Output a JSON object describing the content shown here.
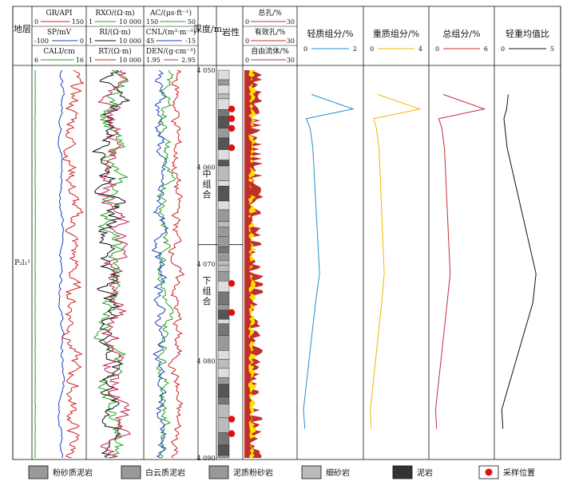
{
  "header": {
    "formation": "地层",
    "depth": "深度/m",
    "lithology": "岩性",
    "track1": [
      {
        "label": "GR/API",
        "min": "0",
        "max": "150",
        "color": "#d02020"
      },
      {
        "label": "SP/mV",
        "min": "-100",
        "max": "0",
        "color": "#2040c0"
      },
      {
        "label": "CALI/cm",
        "min": "6",
        "max": "16",
        "color": "#20a020"
      }
    ],
    "track2": [
      {
        "label": "RXO/(Ω·m)",
        "min": "1",
        "max": "10 000",
        "color": "#20a020"
      },
      {
        "label": "RI/(Ω·m)",
        "min": "1",
        "max": "10 000",
        "color": "#111111"
      },
      {
        "label": "RT/(Ω·m)",
        "min": "1",
        "max": "10 000",
        "color": "#d02020"
      }
    ],
    "track3": [
      {
        "label": "AC/(μs·ft⁻¹)",
        "min": "150",
        "max": "50",
        "color": "#20a020"
      },
      {
        "label": "CNL/(m³·m⁻³)",
        "min": "45",
        "max": "-15",
        "color": "#2040c0"
      },
      {
        "label": "DEN/(g·cm⁻³)",
        "min": "1.95",
        "max": "2.95",
        "color": "#d02020"
      }
    ],
    "porosity": [
      {
        "label": "总孔/%",
        "min": "0",
        "max": "30"
      },
      {
        "label": "有效孔/%",
        "min": "0",
        "max": "30"
      },
      {
        "label": "自由流体/%",
        "min": "0",
        "max": "30"
      }
    ]
  },
  "formation_label": "P₂l₁²",
  "zone_labels": {
    "upper": "中组合",
    "lower": "下组合"
  },
  "depth_ticks": [
    "4 050",
    "4 060",
    "4 070",
    "4 080",
    "4 090"
  ],
  "legend": [
    {
      "name": "粉砂质泥岩",
      "icon": "silty-mudstone-icon"
    },
    {
      "name": "白云质泥岩",
      "icon": "dolomitic-mudstone-icon"
    },
    {
      "name": "泥质粉砂岩",
      "icon": "argillaceous-siltstone-icon"
    },
    {
      "name": "细砂岩",
      "icon": "fine-sandstone-icon"
    },
    {
      "name": "泥岩",
      "icon": "mudstone-icon"
    },
    {
      "name": "采样位置",
      "icon": "sample-dot-icon"
    }
  ],
  "chart_data": {
    "type": "line",
    "depth_range": [
      4050,
      4090
    ],
    "sample_depths_m": [
      4052.5,
      4054,
      4055,
      4056,
      4058,
      4071,
      4074,
      4085,
      4087
    ],
    "series": [
      {
        "name": "轻质组分/%",
        "xlim": [
          0,
          2
        ],
        "color": "#1e90d0",
        "values": [
          0.3,
          1.85,
          0.1,
          0.25,
          0.35,
          0.6,
          0.45,
          0.0,
          0.05
        ]
      },
      {
        "name": "重质组分/%",
        "xlim": [
          0,
          4
        ],
        "color": "#f2b800",
        "values": [
          0.6,
          3.8,
          0.3,
          0.5,
          0.7,
          1.1,
          0.9,
          0.05,
          0.1
        ]
      },
      {
        "name": "总组分/%",
        "xlim": [
          0,
          6
        ],
        "color": "#c0303a",
        "values": [
          0.9,
          5.6,
          0.4,
          0.75,
          1.05,
          1.7,
          1.35,
          0.05,
          0.15
        ]
      },
      {
        "name": "轻重均值比",
        "xlim": [
          0,
          5
        ],
        "color": "#111111",
        "values": [
          0.7,
          0.55,
          0.3,
          0.4,
          0.6,
          3.3,
          3.0,
          0.1,
          0.2
        ]
      }
    ],
    "sample_positions_m": [
      4054,
      4055,
      4056,
      4058,
      4072,
      4075,
      4086,
      4087.5
    ]
  }
}
